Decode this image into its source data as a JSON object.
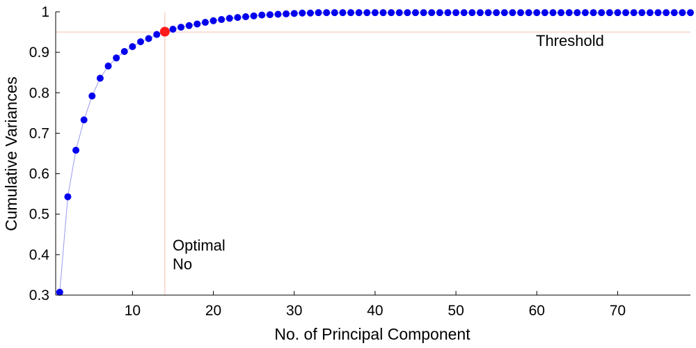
{
  "chart_data": {
    "type": "scatter",
    "title": "",
    "xlabel": "No. of Principal Component",
    "ylabel": "Cumulative Variances",
    "xlim": [
      0.5,
      79
    ],
    "ylim": [
      0.3,
      1.0
    ],
    "xticks": [
      10,
      20,
      30,
      40,
      50,
      60,
      70
    ],
    "yticks": [
      0.3,
      0.4,
      0.5,
      0.6,
      0.7,
      0.8,
      0.9,
      1
    ],
    "xtick_labels": [
      "10",
      "20",
      "30",
      "40",
      "50",
      "60",
      "70"
    ],
    "ytick_labels": [
      "0.3",
      "0.4",
      "0.5",
      "0.6",
      "0.7",
      "0.8",
      "0.9",
      "1"
    ],
    "grid": false,
    "series": [
      {
        "color": "#0000ee",
        "line_color": "#9999ee",
        "x": [
          1,
          2,
          3,
          4,
          5,
          6,
          7,
          8,
          9,
          10,
          11,
          12,
          13,
          14,
          15,
          16,
          17,
          18,
          19,
          20,
          21,
          22,
          23,
          24,
          25,
          26,
          27,
          28,
          29,
          30,
          31,
          32,
          33,
          34,
          35,
          36,
          37,
          38,
          39,
          40,
          41,
          42,
          43,
          44,
          45,
          46,
          47,
          48,
          49,
          50,
          51,
          52,
          53,
          54,
          55,
          56,
          57,
          58,
          59,
          60,
          61,
          62,
          63,
          64,
          65,
          66,
          67,
          68,
          69,
          70,
          71,
          72,
          73,
          74,
          75,
          76,
          77,
          78,
          79
        ],
        "y": [
          0.307,
          0.543,
          0.658,
          0.733,
          0.792,
          0.836,
          0.866,
          0.886,
          0.902,
          0.914,
          0.926,
          0.934,
          0.944,
          0.951,
          0.957,
          0.962,
          0.966,
          0.97,
          0.974,
          0.978,
          0.981,
          0.984,
          0.986,
          0.988,
          0.99,
          0.992,
          0.993,
          0.994,
          0.995,
          0.996,
          0.997,
          0.997,
          0.998,
          0.998,
          0.998,
          0.998,
          0.998,
          0.998,
          0.998,
          0.998,
          0.998,
          0.998,
          0.998,
          0.998,
          0.998,
          0.998,
          0.998,
          0.998,
          0.998,
          0.998,
          0.998,
          0.998,
          0.998,
          0.998,
          0.998,
          0.998,
          0.998,
          0.998,
          0.998,
          0.998,
          0.998,
          0.998,
          0.998,
          0.998,
          0.998,
          0.998,
          0.998,
          0.998,
          0.998,
          0.998,
          0.998,
          0.998,
          0.998,
          0.998,
          0.998,
          0.998,
          0.998,
          0.998,
          0.998
        ]
      }
    ],
    "highlight": {
      "x": 14,
      "y": 0.951,
      "color": "#ff1a1a"
    },
    "threshold": {
      "y": 0.95,
      "label": "Threshold",
      "color": "#f6cfc4"
    },
    "optimal": {
      "x": 14,
      "label_lines": [
        "Optimal",
        "No"
      ],
      "color": "#f6cfc4"
    }
  }
}
